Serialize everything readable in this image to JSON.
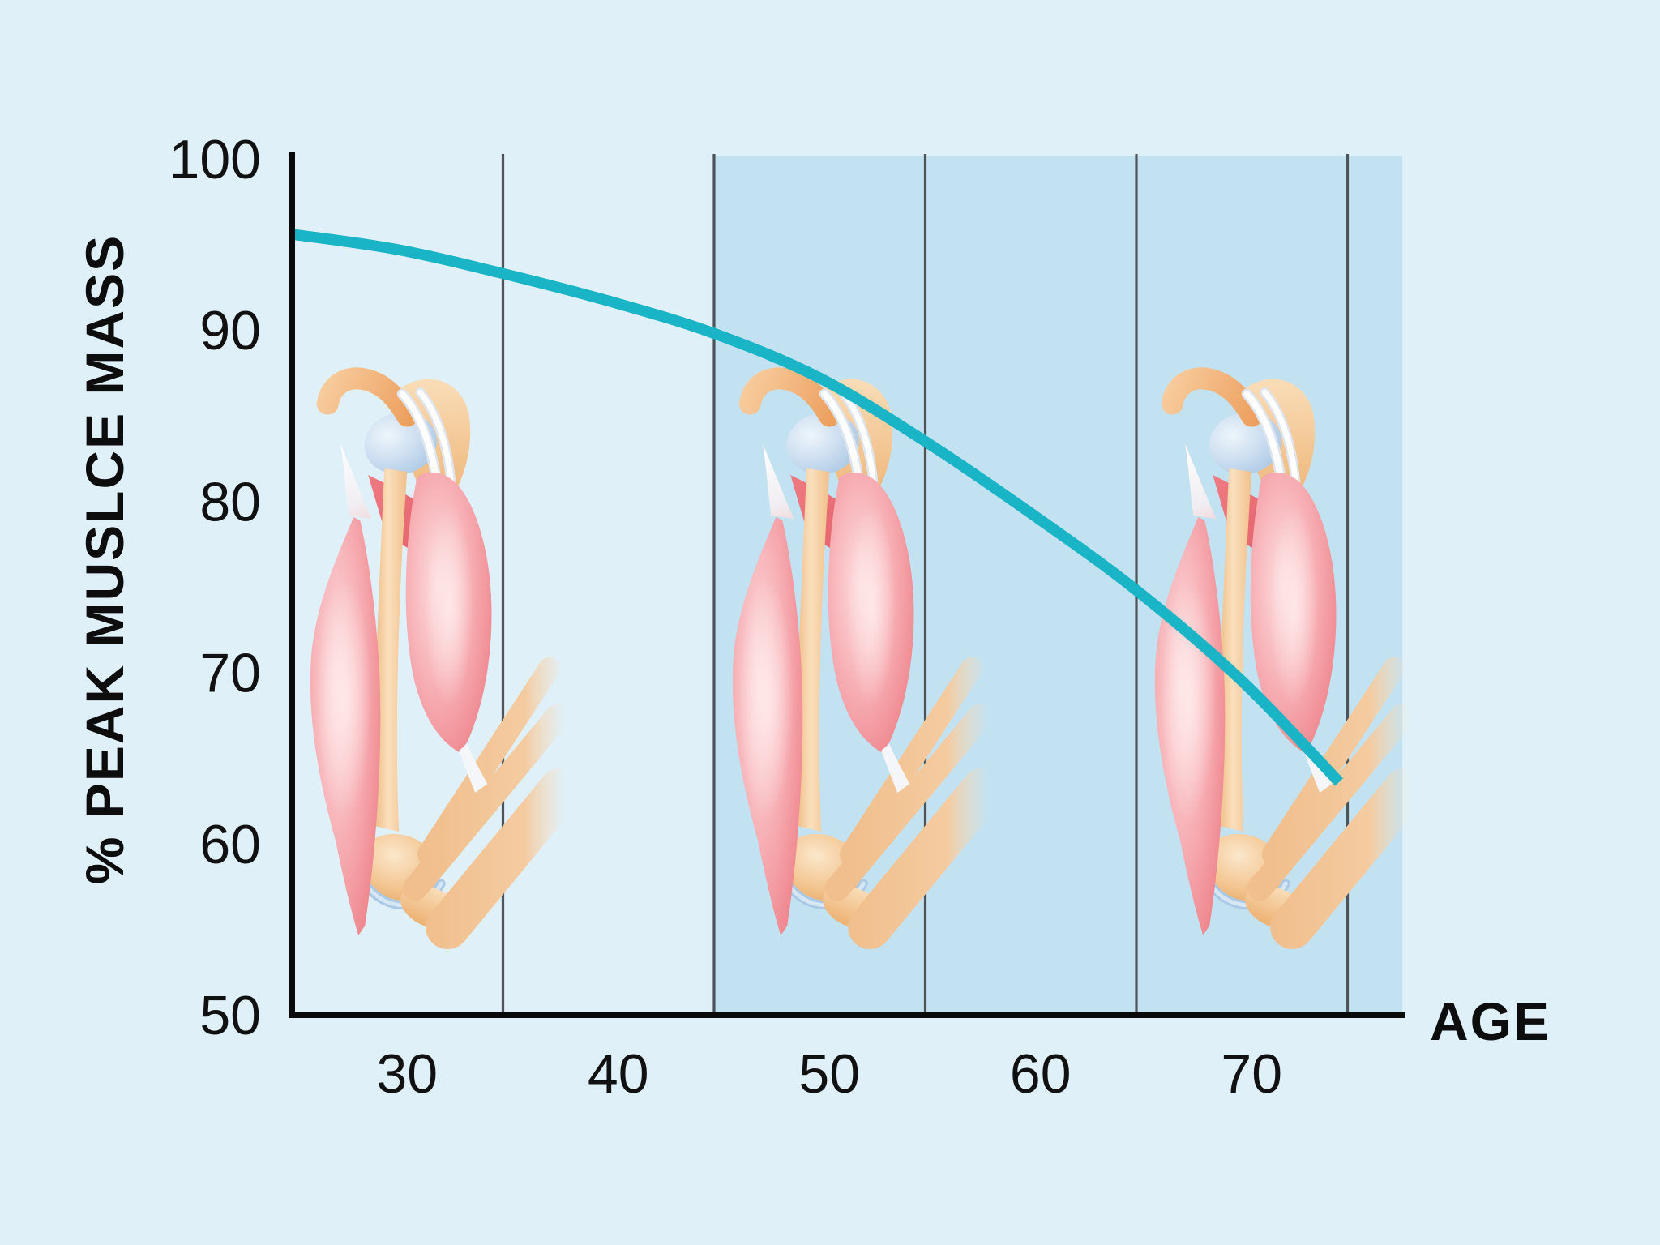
{
  "page": {
    "background": "#e0f0f9"
  },
  "chart_data": {
    "type": "line",
    "title": "",
    "xlabel": "AGE",
    "ylabel": "% PEAK MUSLCE MASS",
    "xlim": [
      25,
      77.6
    ],
    "ylim": [
      50,
      100
    ],
    "xticks": [
      30,
      40,
      50,
      60,
      70
    ],
    "yticks": [
      100,
      90,
      80,
      70,
      60,
      50
    ],
    "gridlines_x": [
      35,
      45,
      55,
      65,
      75
    ],
    "grid_on": true,
    "legend": "none",
    "grid_color": "#4e5358",
    "axis_color": "#0a0a0a",
    "shaded_band": {
      "x_start": 45,
      "x_end": 77.6,
      "color": "#c3e2f1"
    },
    "series": [
      {
        "name": "percent of peak muscle mass by age",
        "color": "#19b4c6",
        "points": [
          [
            25,
            95.6
          ],
          [
            30,
            94.7
          ],
          [
            35,
            93.3
          ],
          [
            40,
            91.7
          ],
          [
            45,
            89.8
          ],
          [
            50,
            87.2
          ],
          [
            55,
            83.5
          ],
          [
            60,
            79.3
          ],
          [
            65,
            74.8
          ],
          [
            70,
            69.5
          ],
          [
            74.6,
            63.6
          ]
        ]
      }
    ]
  },
  "illustrations": [
    {
      "name": "arm-muscle-illustration-age-30",
      "age_center": 30
    },
    {
      "name": "arm-muscle-illustration-age-50",
      "age_center": 50
    },
    {
      "name": "arm-muscle-illustration-age-70",
      "age_center": 70
    }
  ]
}
